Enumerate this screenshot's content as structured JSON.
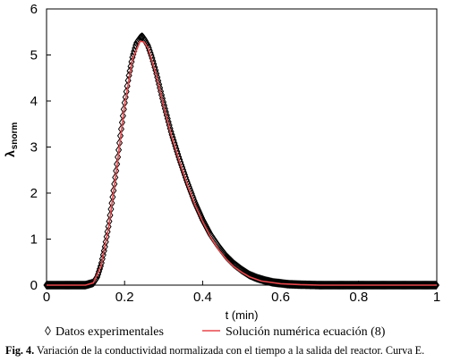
{
  "chart_data": {
    "type": "scatter",
    "xlabel": "t (min)",
    "ylabel_main": "λ",
    "ylabel_sub": "snorm",
    "xlim": [
      0,
      1
    ],
    "ylim": [
      0,
      6
    ],
    "x_ticks": [
      0,
      0.2,
      0.4,
      0.6,
      0.8,
      1
    ],
    "x_tick_labels": [
      "0",
      "0.2",
      "0.4",
      "0.6",
      "0.8",
      "1"
    ],
    "y_ticks": [
      0,
      1,
      2,
      3,
      4,
      5,
      6
    ],
    "y_tick_labels": [
      "0",
      "1",
      "2",
      "3",
      "4",
      "5",
      "6"
    ],
    "grid": false,
    "legend_position": "bottom",
    "series": [
      {
        "name": "Datos experimentales",
        "marker": "◊",
        "color": "#000000",
        "x": [
          0.0,
          0.05,
          0.1,
          0.12,
          0.13,
          0.14,
          0.15,
          0.16,
          0.17,
          0.18,
          0.19,
          0.2,
          0.21,
          0.22,
          0.23,
          0.24,
          0.245,
          0.25,
          0.26,
          0.27,
          0.28,
          0.29,
          0.3,
          0.32,
          0.34,
          0.36,
          0.38,
          0.4,
          0.42,
          0.44,
          0.46,
          0.48,
          0.5,
          0.52,
          0.54,
          0.56,
          0.58,
          0.6,
          0.62,
          0.65,
          0.7,
          0.75,
          0.8,
          0.85,
          0.9,
          0.95,
          1.0
        ],
        "y": [
          0.0,
          0.0,
          0.0,
          0.05,
          0.18,
          0.45,
          0.85,
          1.35,
          1.95,
          2.6,
          3.3,
          3.95,
          4.5,
          4.95,
          5.25,
          5.37,
          5.4,
          5.35,
          5.2,
          4.95,
          4.65,
          4.3,
          3.95,
          3.3,
          2.75,
          2.25,
          1.8,
          1.42,
          1.1,
          0.85,
          0.63,
          0.46,
          0.33,
          0.22,
          0.15,
          0.1,
          0.06,
          0.04,
          0.02,
          0.01,
          0.0,
          0.0,
          0.0,
          0.0,
          0.0,
          0.0,
          0.0
        ]
      },
      {
        "name": "Solución numérica ecuación (8)",
        "color": "#e8474b",
        "x": [
          0.0,
          0.1,
          0.12,
          0.14,
          0.16,
          0.18,
          0.2,
          0.22,
          0.24,
          0.25,
          0.26,
          0.28,
          0.3,
          0.32,
          0.34,
          0.36,
          0.38,
          0.4,
          0.42,
          0.44,
          0.46,
          0.48,
          0.5,
          0.52,
          0.55,
          0.6,
          0.65,
          0.7,
          0.8,
          0.9,
          1.0
        ],
        "y": [
          0.0,
          0.0,
          0.05,
          0.42,
          1.3,
          2.55,
          3.9,
          4.9,
          5.3,
          5.28,
          5.15,
          4.6,
          3.9,
          3.25,
          2.7,
          2.2,
          1.75,
          1.38,
          1.05,
          0.78,
          0.57,
          0.4,
          0.28,
          0.18,
          0.09,
          0.03,
          0.01,
          0.0,
          0.0,
          0.0,
          0.0
        ]
      }
    ]
  },
  "legend": {
    "marker_symbol": "◊",
    "experimental_label": "Datos experimentales",
    "numerical_label": "Solución numérica ecuación (8)"
  },
  "caption": {
    "figure_label": "Fig. 4.",
    "text": " Variación de la conductividad normalizada con el tiempo a la salida del reactor. Curva E."
  }
}
